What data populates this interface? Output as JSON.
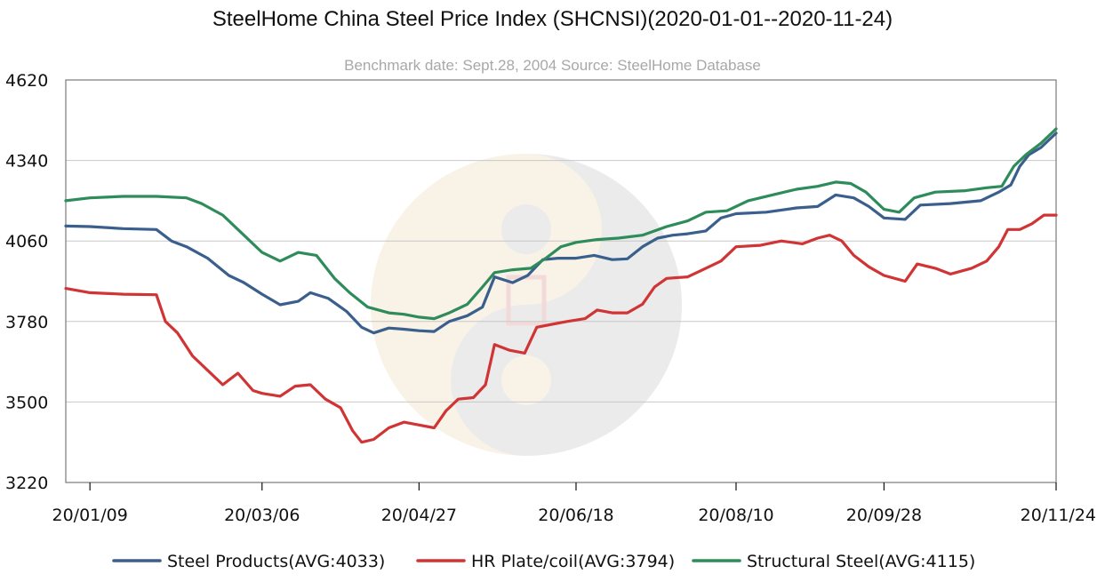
{
  "chart_data": {
    "type": "line",
    "title": "SteelHome China Steel Price Index (SHCNSI)(2020-01-01--2020-11-24)",
    "subtitle": "Benchmark date: Sept.28, 2004 Source: SteelHome Database",
    "xlabel": "",
    "ylabel": "",
    "ylim": [
      3220,
      4620
    ],
    "yticks": [
      "4620",
      "4340",
      "4060",
      "3780",
      "3500",
      "3220"
    ],
    "xticks": [
      "20/01/09",
      "20/03/06",
      "20/04/27",
      "20/06/18",
      "20/08/10",
      "20/09/28",
      "20/11/24"
    ],
    "xlim": [
      "20/01/01",
      "20/11/24"
    ],
    "grid": true,
    "legend_position": "bottom",
    "series": [
      {
        "name": "Steel Products(AVG:4033)",
        "color": "#3a5f8c",
        "points": [
          [
            "20/01/01",
            4112
          ],
          [
            "20/01/09",
            4110
          ],
          [
            "20/01/20",
            4103
          ],
          [
            "20/01/31",
            4100
          ],
          [
            "20/02/05",
            4060
          ],
          [
            "20/02/10",
            4040
          ],
          [
            "20/02/17",
            4000
          ],
          [
            "20/02/24",
            3940
          ],
          [
            "20/02/29",
            3915
          ],
          [
            "20/03/06",
            3875
          ],
          [
            "20/03/12",
            3838
          ],
          [
            "20/03/18",
            3850
          ],
          [
            "20/03/22",
            3880
          ],
          [
            "20/03/28",
            3860
          ],
          [
            "20/04/03",
            3815
          ],
          [
            "20/04/08",
            3760
          ],
          [
            "20/04/12",
            3740
          ],
          [
            "20/04/17",
            3757
          ],
          [
            "20/04/22",
            3753
          ],
          [
            "20/04/27",
            3748
          ],
          [
            "20/05/02",
            3745
          ],
          [
            "20/05/07",
            3780
          ],
          [
            "20/05/13",
            3800
          ],
          [
            "20/05/18",
            3830
          ],
          [
            "20/05/22",
            3935
          ],
          [
            "20/05/28",
            3915
          ],
          [
            "20/06/02",
            3940
          ],
          [
            "20/06/07",
            3995
          ],
          [
            "20/06/12",
            4000
          ],
          [
            "20/06/18",
            4000
          ],
          [
            "20/06/24",
            4010
          ],
          [
            "20/06/30",
            3995
          ],
          [
            "20/07/05",
            3998
          ],
          [
            "20/07/10",
            4040
          ],
          [
            "20/07/15",
            4070
          ],
          [
            "20/07/20",
            4080
          ],
          [
            "20/07/25",
            4085
          ],
          [
            "20/07/31",
            4095
          ],
          [
            "20/08/05",
            4140
          ],
          [
            "20/08/10",
            4155
          ],
          [
            "20/08/20",
            4160
          ],
          [
            "20/08/30",
            4175
          ],
          [
            "20/09/06",
            4180
          ],
          [
            "20/09/12",
            4220
          ],
          [
            "20/09/18",
            4210
          ],
          [
            "20/09/23",
            4180
          ],
          [
            "20/09/28",
            4140
          ],
          [
            "20/10/05",
            4135
          ],
          [
            "20/10/10",
            4185
          ],
          [
            "20/10/20",
            4190
          ],
          [
            "20/10/30",
            4200
          ],
          [
            "20/11/05",
            4230
          ],
          [
            "20/11/09",
            4255
          ],
          [
            "20/11/12",
            4320
          ],
          [
            "20/11/15",
            4360
          ],
          [
            "20/11/19",
            4385
          ],
          [
            "20/11/24",
            4435
          ]
        ]
      },
      {
        "name": "HR Plate/coil(AVG:3794)",
        "color": "#d03434",
        "points": [
          [
            "20/01/01",
            3895
          ],
          [
            "20/01/09",
            3880
          ],
          [
            "20/01/20",
            3875
          ],
          [
            "20/01/31",
            3873
          ],
          [
            "20/02/03",
            3780
          ],
          [
            "20/02/07",
            3740
          ],
          [
            "20/02/12",
            3660
          ],
          [
            "20/02/17",
            3610
          ],
          [
            "20/02/22",
            3560
          ],
          [
            "20/02/27",
            3600
          ],
          [
            "20/03/03",
            3540
          ],
          [
            "20/03/06",
            3530
          ],
          [
            "20/03/12",
            3520
          ],
          [
            "20/03/17",
            3555
          ],
          [
            "20/03/22",
            3560
          ],
          [
            "20/03/27",
            3510
          ],
          [
            "20/04/01",
            3480
          ],
          [
            "20/04/05",
            3400
          ],
          [
            "20/04/08",
            3360
          ],
          [
            "20/04/12",
            3370
          ],
          [
            "20/04/17",
            3410
          ],
          [
            "20/04/22",
            3430
          ],
          [
            "20/04/27",
            3420
          ],
          [
            "20/05/02",
            3410
          ],
          [
            "20/05/06",
            3470
          ],
          [
            "20/05/10",
            3510
          ],
          [
            "20/05/15",
            3515
          ],
          [
            "20/05/19",
            3560
          ],
          [
            "20/05/22",
            3700
          ],
          [
            "20/05/27",
            3680
          ],
          [
            "20/06/01",
            3670
          ],
          [
            "20/06/05",
            3760
          ],
          [
            "20/06/10",
            3770
          ],
          [
            "20/06/15",
            3780
          ],
          [
            "20/06/21",
            3790
          ],
          [
            "20/06/25",
            3820
          ],
          [
            "20/06/30",
            3810
          ],
          [
            "20/07/05",
            3810
          ],
          [
            "20/07/10",
            3840
          ],
          [
            "20/07/14",
            3900
          ],
          [
            "20/07/18",
            3930
          ],
          [
            "20/07/25",
            3935
          ],
          [
            "20/07/30",
            3960
          ],
          [
            "20/08/05",
            3990
          ],
          [
            "20/08/10",
            4040
          ],
          [
            "20/08/18",
            4045
          ],
          [
            "20/08/25",
            4060
          ],
          [
            "20/09/01",
            4050
          ],
          [
            "20/09/06",
            4070
          ],
          [
            "20/09/10",
            4080
          ],
          [
            "20/09/14",
            4060
          ],
          [
            "20/09/18",
            4010
          ],
          [
            "20/09/23",
            3970
          ],
          [
            "20/09/28",
            3940
          ],
          [
            "20/10/05",
            3920
          ],
          [
            "20/10/09",
            3980
          ],
          [
            "20/10/15",
            3965
          ],
          [
            "20/10/20",
            3945
          ],
          [
            "20/10/27",
            3965
          ],
          [
            "20/11/01",
            3990
          ],
          [
            "20/11/05",
            4040
          ],
          [
            "20/11/08",
            4100
          ],
          [
            "20/11/12",
            4100
          ],
          [
            "20/11/16",
            4120
          ],
          [
            "20/11/20",
            4150
          ],
          [
            "20/11/24",
            4150
          ]
        ]
      },
      {
        "name": "Structural Steel(AVG:4115)",
        "color": "#2e8b5a",
        "points": [
          [
            "20/01/01",
            4200
          ],
          [
            "20/01/09",
            4210
          ],
          [
            "20/01/20",
            4215
          ],
          [
            "20/01/31",
            4215
          ],
          [
            "20/02/10",
            4210
          ],
          [
            "20/02/15",
            4190
          ],
          [
            "20/02/22",
            4150
          ],
          [
            "20/02/29",
            4080
          ],
          [
            "20/03/06",
            4020
          ],
          [
            "20/03/12",
            3990
          ],
          [
            "20/03/18",
            4020
          ],
          [
            "20/03/24",
            4010
          ],
          [
            "20/03/30",
            3930
          ],
          [
            "20/04/04",
            3880
          ],
          [
            "20/04/10",
            3830
          ],
          [
            "20/04/17",
            3810
          ],
          [
            "20/04/22",
            3805
          ],
          [
            "20/04/27",
            3795
          ],
          [
            "20/05/02",
            3790
          ],
          [
            "20/05/07",
            3810
          ],
          [
            "20/05/13",
            3840
          ],
          [
            "20/05/18",
            3900
          ],
          [
            "20/05/22",
            3950
          ],
          [
            "20/05/28",
            3960
          ],
          [
            "20/06/03",
            3965
          ],
          [
            "20/06/08",
            4000
          ],
          [
            "20/06/13",
            4040
          ],
          [
            "20/06/18",
            4055
          ],
          [
            "20/06/25",
            4065
          ],
          [
            "20/07/02",
            4070
          ],
          [
            "20/07/10",
            4080
          ],
          [
            "20/07/18",
            4110
          ],
          [
            "20/07/25",
            4130
          ],
          [
            "20/07/31",
            4160
          ],
          [
            "20/08/07",
            4165
          ],
          [
            "20/08/14",
            4200
          ],
          [
            "20/08/22",
            4220
          ],
          [
            "20/08/30",
            4240
          ],
          [
            "20/09/06",
            4250
          ],
          [
            "20/09/12",
            4265
          ],
          [
            "20/09/17",
            4260
          ],
          [
            "20/09/22",
            4230
          ],
          [
            "20/09/28",
            4170
          ],
          [
            "20/10/03",
            4160
          ],
          [
            "20/10/08",
            4210
          ],
          [
            "20/10/15",
            4230
          ],
          [
            "20/10/25",
            4235
          ],
          [
            "20/11/01",
            4245
          ],
          [
            "20/11/06",
            4250
          ],
          [
            "20/11/10",
            4320
          ],
          [
            "20/11/14",
            4360
          ],
          [
            "20/11/19",
            4400
          ],
          [
            "20/11/24",
            4450
          ]
        ]
      }
    ]
  }
}
